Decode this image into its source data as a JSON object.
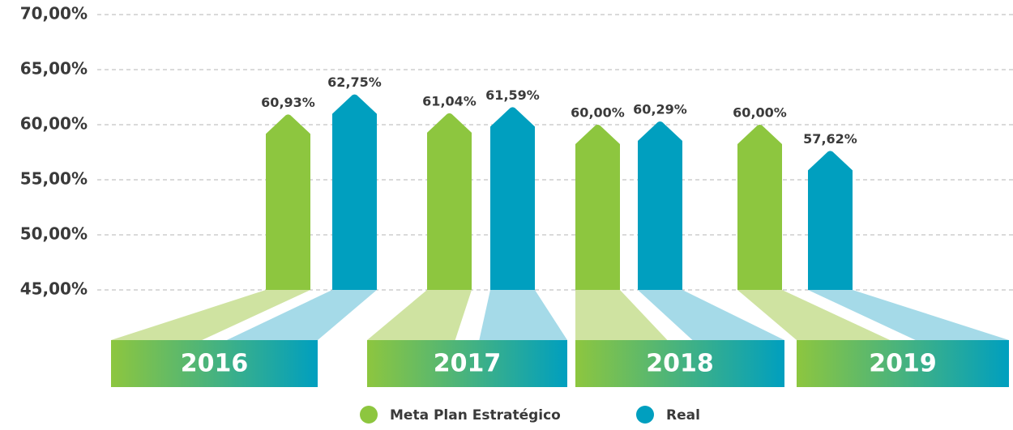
{
  "chart_data": {
    "type": "bar",
    "categories": [
      "2016",
      "2017",
      "2018",
      "2019"
    ],
    "series": [
      {
        "name": "Meta Plan Estratégico",
        "color": "#8dc63f",
        "values": [
          60.93,
          61.04,
          60.0,
          60.0
        ],
        "value_labels": [
          "60,93%",
          "61,04%",
          "60,00%",
          "60,00%"
        ]
      },
      {
        "name": "Real",
        "color": "#009fbf",
        "values": [
          62.75,
          61.59,
          60.29,
          57.62
        ],
        "value_labels": [
          "62,75%",
          "61,59%",
          "60,29%",
          "57,62%"
        ]
      }
    ],
    "ylim": [
      45,
      70
    ],
    "yticks": [
      {
        "value": 45,
        "label": "45,00%"
      },
      {
        "value": 50,
        "label": "50,00%"
      },
      {
        "value": 55,
        "label": "55,00%"
      },
      {
        "value": 60,
        "label": "60,00%"
      },
      {
        "value": 65,
        "label": "65,00%"
      },
      {
        "value": 70,
        "label": "70,00%"
      }
    ],
    "grid": true,
    "legend": "bottom"
  }
}
